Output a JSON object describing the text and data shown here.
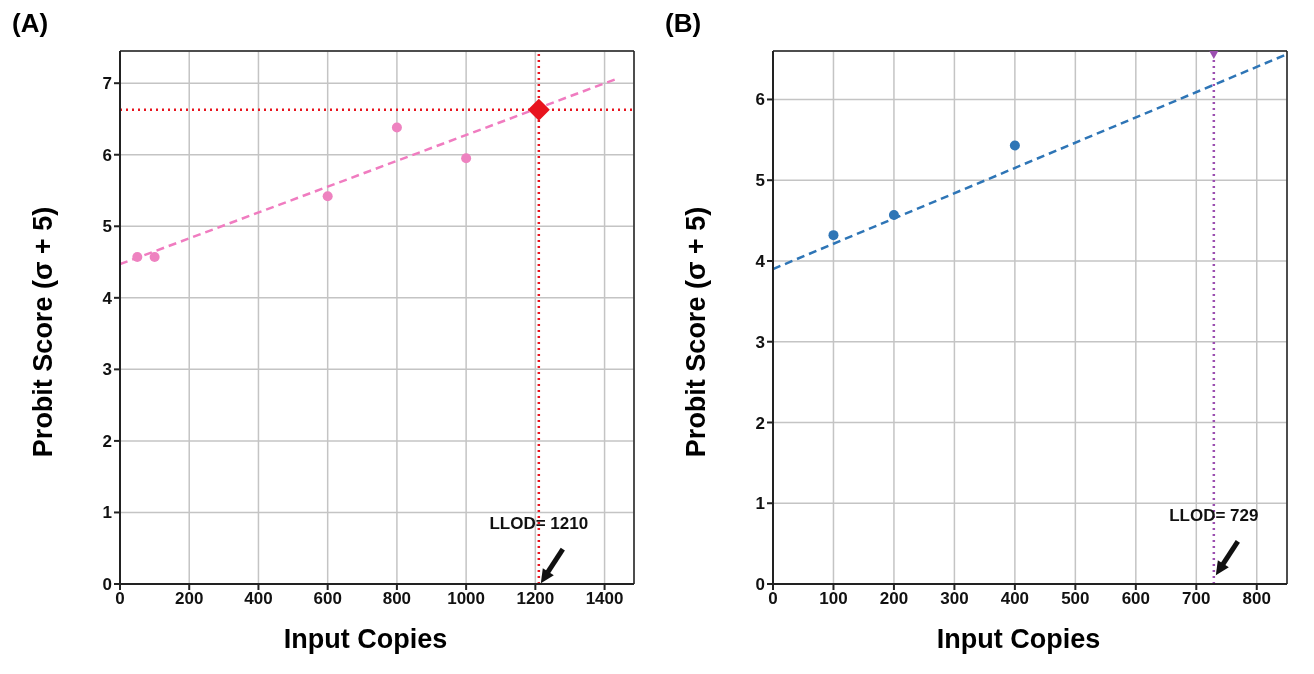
{
  "chart_data": [
    {
      "type": "scatter",
      "title": "(A)",
      "xlabel": "Input Copies",
      "ylabel": "Probit Score (σ + 5)",
      "xlim": [
        0,
        1485
      ],
      "xticks": [
        0,
        200,
        400,
        600,
        800,
        1000,
        1200,
        1400
      ],
      "ylim": [
        0,
        7.45
      ],
      "yticks": [
        0,
        1,
        2,
        3,
        4,
        5,
        6,
        7
      ],
      "grid": true,
      "series": [
        {
          "type": "scatter",
          "color": "#ee82c0",
          "x": [
            50,
            100,
            600,
            800,
            1000
          ],
          "values": [
            4.57,
            4.57,
            5.42,
            6.38,
            5.95
          ],
          "marker": "circle"
        },
        {
          "type": "line",
          "color": "#f07cc0",
          "x": [
            0,
            1440
          ],
          "values": [
            4.47,
            7.07
          ],
          "line_style": "dashed",
          "marker": "none"
        },
        {
          "type": "scatter",
          "color": "#e8141e",
          "x": [
            1210
          ],
          "values": [
            6.63
          ],
          "marker": "diamond"
        }
      ],
      "ref_lines": [
        {
          "axis": "y",
          "value": 6.63,
          "color": "#e8141e",
          "line_style": "dotted"
        },
        {
          "axis": "x",
          "value": 1210,
          "color": "#e8141e",
          "line_style": "dotted"
        }
      ],
      "annotations": [
        {
          "text": "LLOD= 1210",
          "x": 1210,
          "y": 0.85
        }
      ]
    },
    {
      "type": "scatter",
      "title": "(B)",
      "xlabel": "Input Copies",
      "ylabel": "Probit Score (σ + 5)",
      "xlim": [
        0,
        850
      ],
      "xticks": [
        0,
        100,
        200,
        300,
        400,
        500,
        600,
        700,
        800
      ],
      "ylim": [
        0,
        6.6
      ],
      "yticks": [
        0,
        1,
        2,
        3,
        4,
        5,
        6
      ],
      "grid": true,
      "series": [
        {
          "type": "scatter",
          "color": "#2e75b6",
          "x": [
            100,
            200,
            400
          ],
          "values": [
            4.32,
            4.57,
            5.43
          ],
          "marker": "circle"
        },
        {
          "type": "line",
          "color": "#2e75b6",
          "x": [
            0,
            850
          ],
          "values": [
            3.9,
            6.56
          ],
          "line_style": "dashed",
          "marker": "none"
        },
        {
          "type": "scatter",
          "color": "#9b4fb0",
          "x": [
            729
          ],
          "values": [
            6.6
          ],
          "marker": "triangle"
        }
      ],
      "ref_lines": [
        {
          "axis": "x",
          "value": 729,
          "color": "#9b4fb0",
          "line_style": "dotted"
        }
      ],
      "annotations": [
        {
          "text": "LLOD= 729",
          "x": 729,
          "y": 0.85
        }
      ]
    }
  ]
}
